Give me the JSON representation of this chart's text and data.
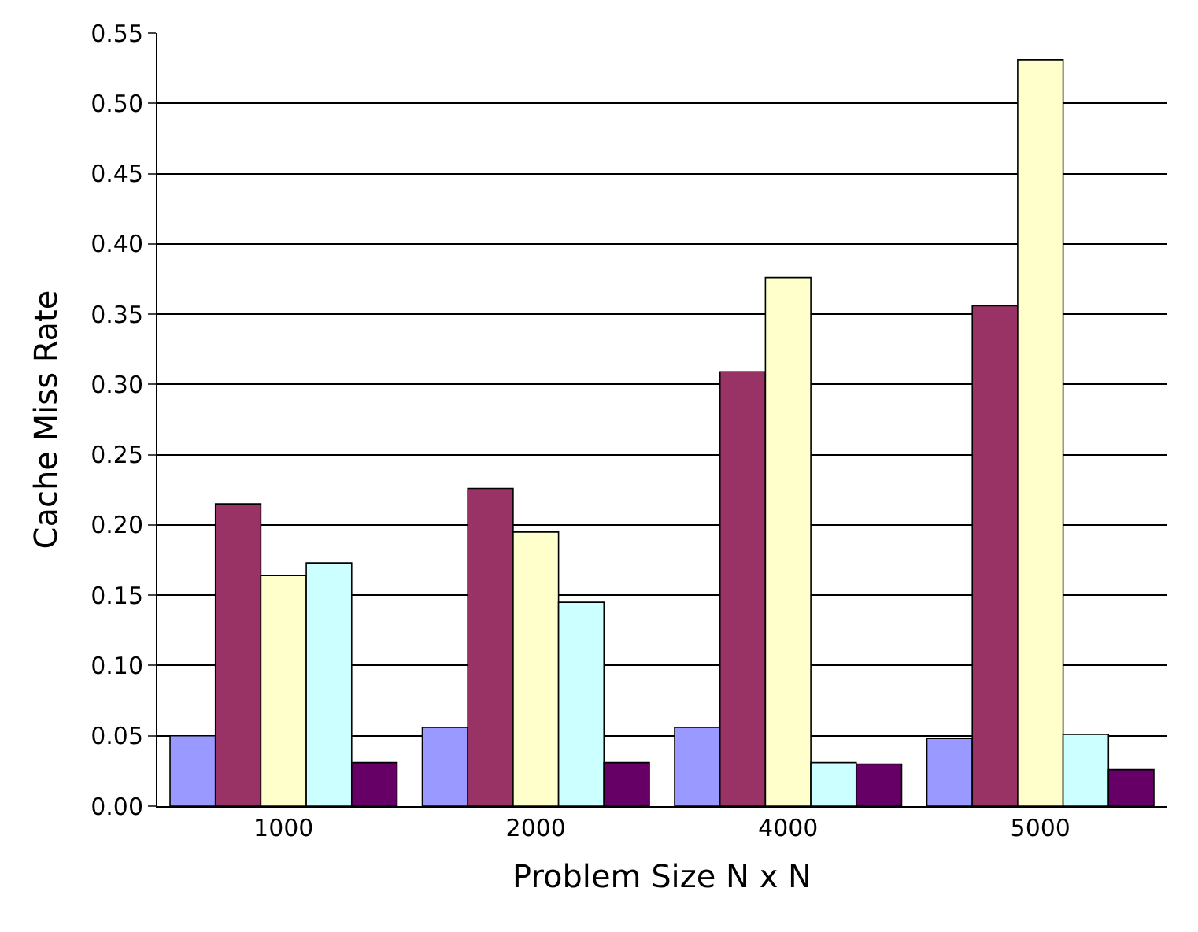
{
  "chart_data": {
    "type": "bar",
    "xlabel": "Problem Size N x N",
    "ylabel": "Cache Miss Rate",
    "categories": [
      "1000",
      "2000",
      "4000",
      "5000"
    ],
    "series": [
      {
        "color": "#9999ff",
        "values": [
          0.05,
          0.056,
          0.056,
          0.048
        ]
      },
      {
        "color": "#993366",
        "values": [
          0.215,
          0.226,
          0.309,
          0.356
        ]
      },
      {
        "color": "#ffffcc",
        "values": [
          0.164,
          0.195,
          0.376,
          0.531
        ]
      },
      {
        "color": "#ccffff",
        "values": [
          0.173,
          0.145,
          0.031,
          0.051
        ]
      },
      {
        "color": "#660066",
        "values": [
          0.031,
          0.031,
          0.03,
          0.026
        ]
      }
    ],
    "ylim": [
      0,
      0.55
    ],
    "yticks": [
      {
        "value": 0,
        "label": "0.00"
      },
      {
        "value": 0.05,
        "label": "0.05"
      },
      {
        "value": 0.1,
        "label": "0.10"
      },
      {
        "value": 0.15,
        "label": "0.15"
      },
      {
        "value": 0.2,
        "label": "0.20"
      },
      {
        "value": 0.25,
        "label": "0.25"
      },
      {
        "value": 0.3,
        "label": "0.30"
      },
      {
        "value": 0.35,
        "label": "0.35"
      },
      {
        "value": 0.4,
        "label": "0.40"
      },
      {
        "value": 0.45,
        "label": "0.45"
      },
      {
        "value": 0.5,
        "label": "0.50"
      },
      {
        "value": 0.55,
        "label": "0.55"
      }
    ],
    "grid": "y"
  }
}
